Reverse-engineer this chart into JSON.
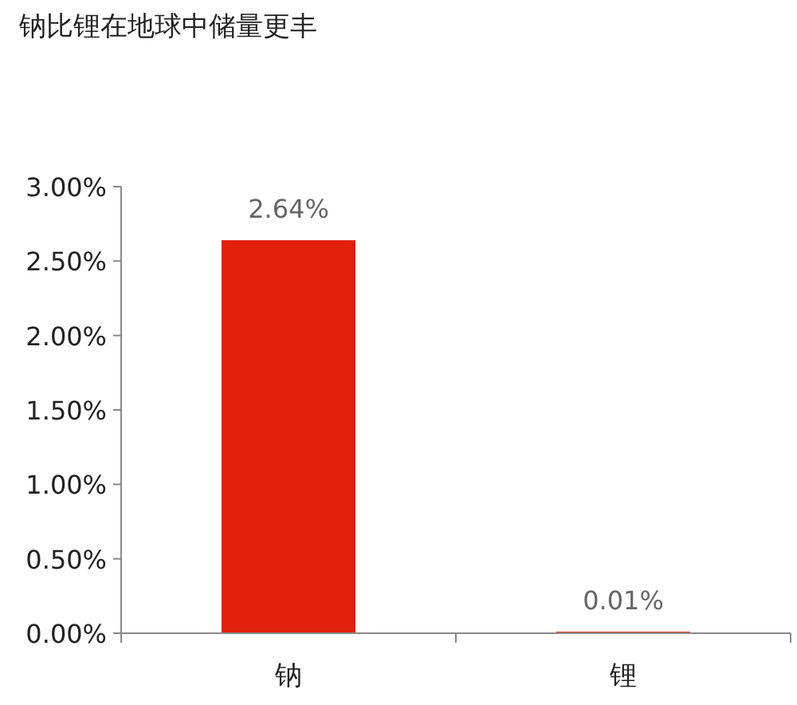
{
  "chart_data": {
    "type": "bar",
    "title": "钠比锂在地球中储量更丰",
    "categories": [
      "钠",
      "锂"
    ],
    "series": [
      {
        "color": "#e21f0a",
        "values": [
          2.64,
          0.01
        ],
        "value_labels": [
          "2.64%",
          "0.01%"
        ]
      }
    ],
    "ylim": [
      0,
      3
    ],
    "yticks": [
      {
        "value": 0,
        "label": "0.00%"
      },
      {
        "value": 0.5,
        "label": "0.50%"
      },
      {
        "value": 1,
        "label": "1.00%"
      },
      {
        "value": 1.5,
        "label": "1.50%"
      },
      {
        "value": 2,
        "label": "2.00%"
      },
      {
        "value": 2.5,
        "label": "2.50%"
      },
      {
        "value": 3,
        "label": "3.00%"
      }
    ],
    "grid": false
  }
}
